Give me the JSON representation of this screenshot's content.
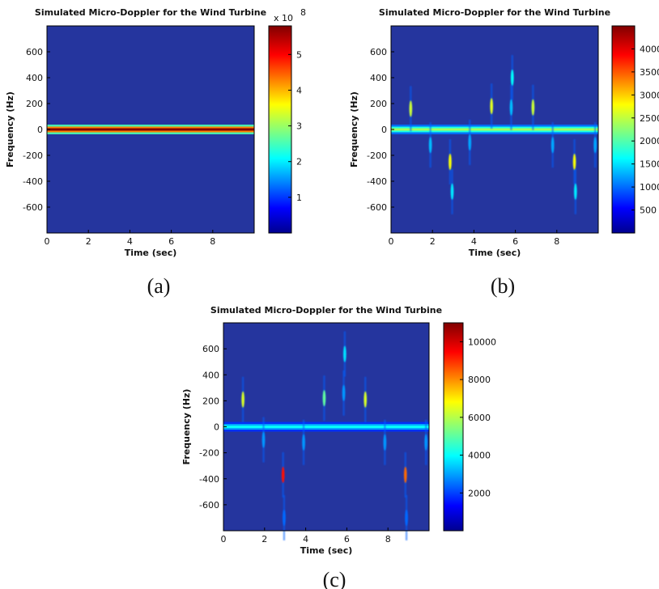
{
  "chart_data": [
    {
      "type": "heatmap",
      "caption": "(a)",
      "title": "Simulated Micro-Doppler for the Wind Turbine",
      "xlabel": "Time (sec)",
      "ylabel": "Frequency (Hz)",
      "xlim": [
        0,
        10
      ],
      "ylim": [
        -800,
        800
      ],
      "xticks": [
        0,
        2,
        4,
        6,
        8
      ],
      "yticks": [
        600,
        400,
        200,
        0,
        -200,
        -400,
        -600
      ],
      "colorbar": {
        "ticks": [
          1,
          2,
          3,
          4,
          5
        ],
        "multiplier": "x 10",
        "exponent": "8",
        "range": [
          0,
          5.8
        ]
      },
      "band": {
        "frequency": 0,
        "value": 5.8
      },
      "flashes": []
    },
    {
      "type": "heatmap",
      "caption": "(b)",
      "title": "Simulated Micro-Doppler for the Wind Turbine",
      "xlabel": "Time (sec)",
      "ylabel": "Frequency (Hz)",
      "xlim": [
        0,
        10
      ],
      "ylim": [
        -800,
        800
      ],
      "xticks": [
        0,
        2,
        4,
        6,
        8
      ],
      "yticks": [
        600,
        400,
        200,
        0,
        -200,
        -400,
        -600
      ],
      "colorbar": {
        "ticks": [
          500,
          1000,
          1500,
          2000,
          2500,
          3000,
          3500,
          4000
        ],
        "range": [
          0,
          4500
        ]
      },
      "band": {
        "frequency": 0,
        "value": 2400
      },
      "flashes": [
        {
          "t": 0.95,
          "f": 160,
          "value": 2600
        },
        {
          "t": 1.9,
          "f": -120,
          "value": 1400
        },
        {
          "t": 2.85,
          "f": -250,
          "value": 2800
        },
        {
          "t": 2.95,
          "f": -480,
          "value": 1600
        },
        {
          "t": 3.8,
          "f": -100,
          "value": 1300
        },
        {
          "t": 4.85,
          "f": 180,
          "value": 2700
        },
        {
          "t": 5.85,
          "f": 400,
          "value": 1700
        },
        {
          "t": 5.8,
          "f": 170,
          "value": 1400
        },
        {
          "t": 6.85,
          "f": 170,
          "value": 2600
        },
        {
          "t": 7.8,
          "f": -120,
          "value": 1300
        },
        {
          "t": 8.85,
          "f": -250,
          "value": 2800
        },
        {
          "t": 8.9,
          "f": -480,
          "value": 1600
        },
        {
          "t": 9.85,
          "f": -120,
          "value": 1300
        }
      ]
    },
    {
      "type": "heatmap",
      "caption": "(c)",
      "title": "Simulated Micro-Doppler for the Wind Turbine",
      "xlabel": "Time (sec)",
      "ylabel": "Frequency (Hz)",
      "xlim": [
        0,
        10
      ],
      "ylim": [
        -800,
        800
      ],
      "xticks": [
        0,
        2,
        4,
        6,
        8
      ],
      "yticks": [
        600,
        400,
        200,
        0,
        -200,
        -400,
        -600
      ],
      "colorbar": {
        "ticks": [
          2000,
          4000,
          6000,
          8000,
          10000
        ],
        "range": [
          0,
          11000
        ]
      },
      "band": {
        "frequency": 0,
        "value": 4200
      },
      "flashes": [
        {
          "t": 0.95,
          "f": 210,
          "value": 6500
        },
        {
          "t": 1.95,
          "f": -100,
          "value": 3000
        },
        {
          "t": 2.9,
          "f": -370,
          "value": 9500
        },
        {
          "t": 2.95,
          "f": -700,
          "value": 2500
        },
        {
          "t": 3.9,
          "f": -120,
          "value": 3000
        },
        {
          "t": 4.9,
          "f": 220,
          "value": 5200
        },
        {
          "t": 5.9,
          "f": 560,
          "value": 3800
        },
        {
          "t": 5.85,
          "f": 260,
          "value": 3000
        },
        {
          "t": 6.9,
          "f": 210,
          "value": 6500
        },
        {
          "t": 7.85,
          "f": -120,
          "value": 3000
        },
        {
          "t": 8.85,
          "f": -370,
          "value": 8500
        },
        {
          "t": 8.9,
          "f": -700,
          "value": 2500
        },
        {
          "t": 9.85,
          "f": -120,
          "value": 3000
        }
      ]
    }
  ]
}
